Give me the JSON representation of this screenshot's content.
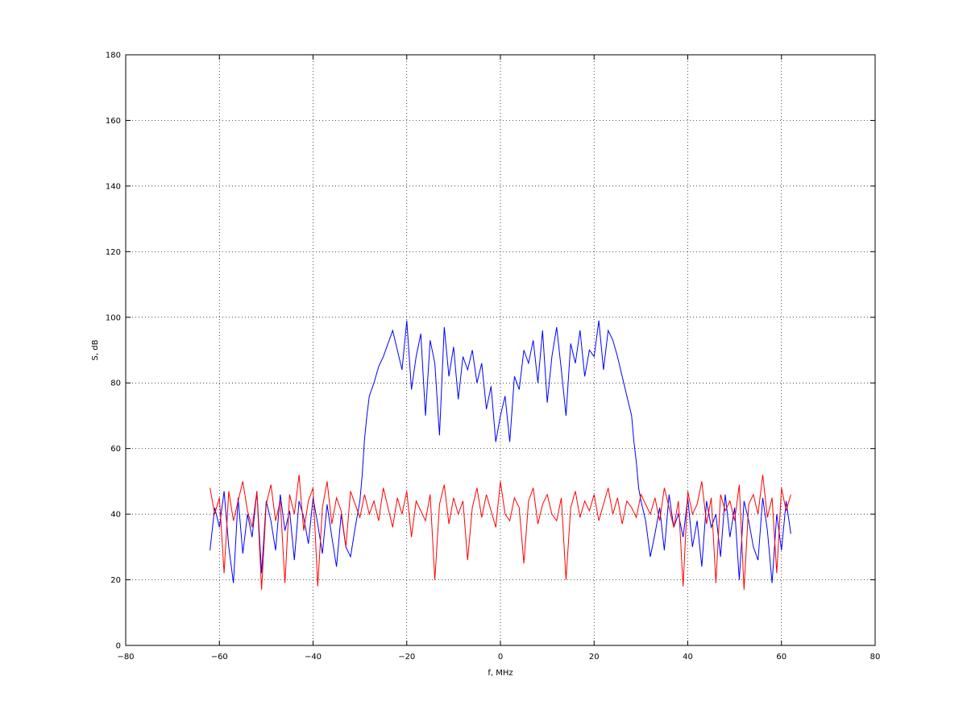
{
  "chart_data": {
    "type": "line",
    "title": "",
    "xlabel": "f, MHz",
    "ylabel": "S, dB",
    "xlim": [
      -80,
      80
    ],
    "ylim": [
      0,
      180
    ],
    "xticks": [
      -80,
      -60,
      -40,
      -20,
      0,
      20,
      40,
      60,
      80
    ],
    "yticks": [
      0,
      20,
      40,
      60,
      80,
      100,
      120,
      140,
      160,
      180
    ],
    "grid": true,
    "grid_style": "dotted",
    "series": [
      {
        "color": "#0000ff",
        "x": [
          -62,
          -61,
          -60,
          -59,
          -58,
          -57,
          -56,
          -55,
          -54,
          -53,
          -52,
          -51,
          -50,
          -49,
          -48,
          -47,
          -46,
          -45,
          -44,
          -43,
          -42,
          -41,
          -40,
          -39,
          -38,
          -37,
          -36,
          -35,
          -34,
          -33,
          -32,
          -31,
          -30,
          -29.5,
          -29,
          -28.5,
          -28,
          -27,
          -26,
          -25,
          -24,
          -23,
          -22,
          -21,
          -20,
          -19,
          -18,
          -17,
          -16,
          -15,
          -14,
          -13,
          -12,
          -11,
          -10,
          -9,
          -8,
          -7,
          -6,
          -5,
          -4,
          -3,
          -2,
          -1,
          0,
          1,
          2,
          3,
          4,
          5,
          6,
          7,
          8,
          9,
          10,
          11,
          12,
          13,
          14,
          15,
          16,
          17,
          18,
          19,
          20,
          21,
          22,
          23,
          24,
          25,
          26,
          27,
          28,
          28.5,
          29,
          29.5,
          30,
          31,
          32,
          33,
          34,
          35,
          36,
          37,
          38,
          39,
          40,
          41,
          42,
          43,
          44,
          45,
          46,
          47,
          48,
          49,
          50,
          51,
          52,
          53,
          54,
          55,
          56,
          57,
          58,
          59,
          60,
          61,
          62
        ],
        "y": [
          29,
          42,
          36,
          47,
          30,
          19,
          45,
          28,
          40,
          33,
          47,
          22,
          44,
          38,
          29,
          46,
          35,
          41,
          26,
          44,
          39,
          31,
          45,
          37,
          28,
          43,
          33,
          24,
          40,
          30,
          27,
          36,
          44,
          52,
          63,
          70,
          76,
          80,
          85,
          88,
          92,
          96,
          90,
          84,
          99,
          78,
          88,
          95,
          70,
          93,
          86,
          64,
          97,
          82,
          91,
          75,
          88,
          84,
          90,
          80,
          86,
          72,
          79,
          62,
          70,
          76,
          62,
          82,
          78,
          90,
          86,
          93,
          80,
          96,
          74,
          88,
          97,
          84,
          70,
          92,
          86,
          96,
          82,
          90,
          88,
          99,
          84,
          96,
          93,
          88,
          82,
          76,
          70,
          62,
          56,
          48,
          44,
          38,
          27,
          34,
          42,
          29,
          46,
          36,
          40,
          33,
          45,
          30,
          38,
          24,
          44,
          36,
          40,
          27,
          46,
          33,
          42,
          20,
          44,
          38,
          30,
          26,
          45,
          35,
          19,
          40,
          29,
          44,
          34
        ]
      },
      {
        "color": "#ff0000",
        "x": [
          -62,
          -61,
          -60,
          -59,
          -58,
          -57,
          -56,
          -55,
          -54,
          -53,
          -52,
          -51,
          -50,
          -49,
          -48,
          -47,
          -46,
          -45,
          -44,
          -43,
          -42,
          -41,
          -40,
          -39,
          -38,
          -37,
          -36,
          -35,
          -34,
          -33,
          -32,
          -31,
          -30,
          -29,
          -28,
          -27,
          -26,
          -25,
          -24,
          -23,
          -22,
          -21,
          -20,
          -19,
          -18,
          -17,
          -16,
          -15,
          -14,
          -13,
          -12,
          -11,
          -10,
          -9,
          -8,
          -7,
          -6,
          -5,
          -4,
          -3,
          -2,
          -1,
          0,
          1,
          2,
          3,
          4,
          5,
          6,
          7,
          8,
          9,
          10,
          11,
          12,
          13,
          14,
          15,
          16,
          17,
          18,
          19,
          20,
          21,
          22,
          23,
          24,
          25,
          26,
          27,
          28,
          29,
          30,
          31,
          32,
          33,
          34,
          35,
          36,
          37,
          38,
          39,
          40,
          41,
          42,
          43,
          44,
          45,
          46,
          47,
          48,
          49,
          50,
          51,
          52,
          53,
          54,
          55,
          56,
          57,
          58,
          59,
          60,
          61,
          62
        ],
        "y": [
          48,
          40,
          45,
          22,
          47,
          38,
          44,
          50,
          41,
          36,
          47,
          17,
          43,
          49,
          38,
          44,
          19,
          46,
          40,
          52,
          35,
          44,
          48,
          18,
          42,
          50,
          37,
          45,
          41,
          30,
          47,
          43,
          39,
          46,
          40,
          44,
          38,
          48,
          42,
          36,
          45,
          40,
          47,
          33,
          44,
          41,
          38,
          46,
          20,
          43,
          49,
          37,
          45,
          40,
          44,
          26,
          42,
          48,
          39,
          46,
          41,
          36,
          50,
          40,
          38,
          45,
          42,
          25,
          44,
          48,
          37,
          43,
          46,
          40,
          38,
          45,
          20,
          42,
          47,
          39,
          44,
          41,
          46,
          38,
          43,
          48,
          40,
          45,
          37,
          44,
          42,
          39,
          46,
          43,
          40,
          45,
          38,
          48,
          42,
          36,
          44,
          18,
          47,
          40,
          43,
          50,
          37,
          45,
          19,
          46,
          41,
          44,
          38,
          49,
          17,
          43,
          46,
          40,
          52,
          39,
          45,
          22,
          48,
          41,
          46
        ]
      }
    ]
  }
}
